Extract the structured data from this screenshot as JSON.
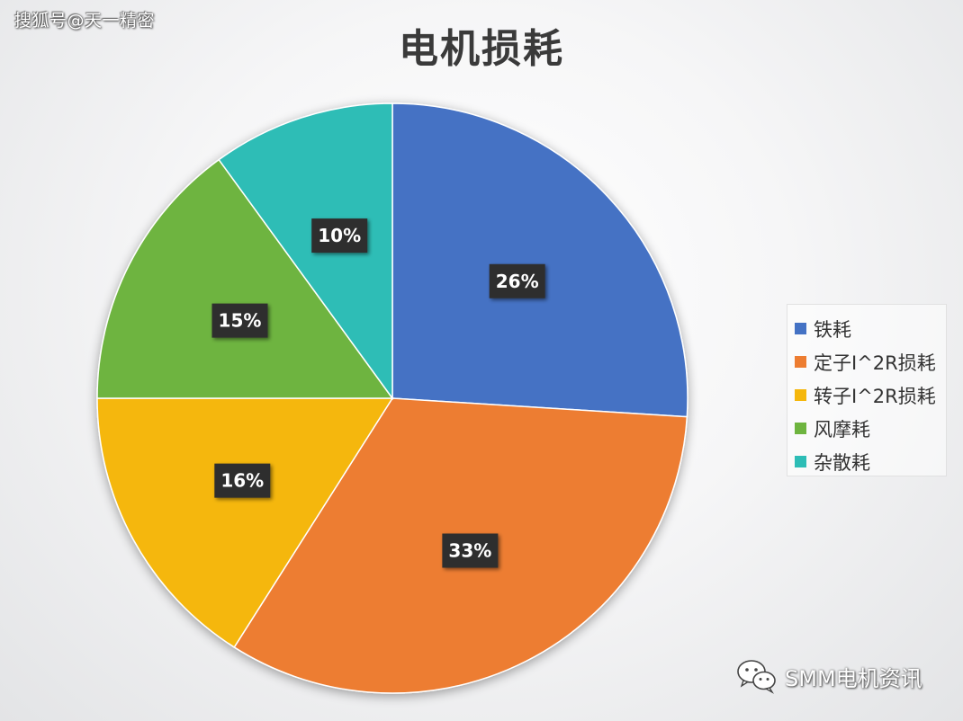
{
  "watermark": "搜狐号@天一精密",
  "source": "SMM电机资讯",
  "colors": {
    "blue": "#4472C4",
    "orange": "#ED7D31",
    "yellow": "#F5B70C",
    "green": "#6EB43F",
    "teal": "#2DBDB6"
  },
  "chart_data": {
    "type": "pie",
    "title": "电机损耗",
    "legend_position": "right",
    "slices": [
      {
        "label": "铁耗",
        "value": 26,
        "data_label": "26%",
        "color": "#4472C4"
      },
      {
        "label": "定子I^2R损耗",
        "value": 33,
        "data_label": "33%",
        "color": "#ED7D31"
      },
      {
        "label": "转子I^2R损耗",
        "value": 16,
        "data_label": "16%",
        "color": "#F5B70C"
      },
      {
        "label": "风摩耗",
        "value": 15,
        "data_label": "15%",
        "color": "#6EB43F"
      },
      {
        "label": "杂散耗",
        "value": 10,
        "data_label": "10%",
        "color": "#2DBDB6"
      }
    ]
  }
}
